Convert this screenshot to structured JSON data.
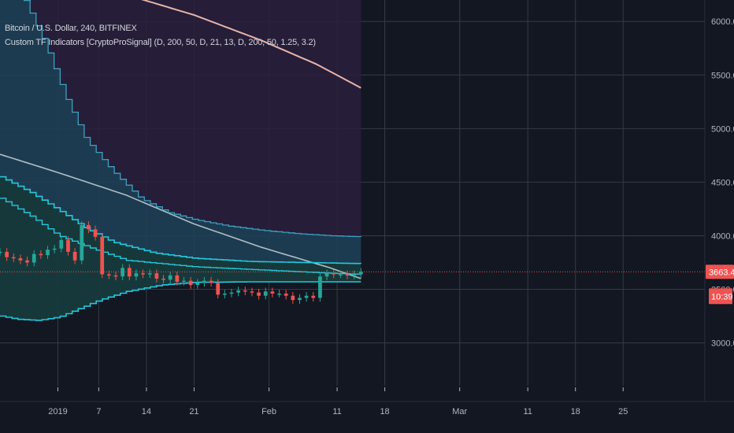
{
  "header": {
    "symbol_line": "Bitcoin / U.S. Dollar, 240, BITFINEX",
    "indicator_line": "Custom TF Indicators [CryptoProSignal] (D, 200, 50, D, 21, 13, D, 200, 50, 1.25, 3.2)"
  },
  "chart_data": {
    "type": "line",
    "title": "Bitcoin / U.S. Dollar, 240, BITFINEX",
    "ylim": [
      2600,
      6200
    ],
    "y_ticks": [
      "3000.0",
      "3500.0",
      "4000.0",
      "4500.0",
      "5000.0",
      "5500.0",
      "6000.0"
    ],
    "x_ticks": [
      "2019",
      "7",
      "14",
      "21",
      "Feb",
      "11",
      "18",
      "Mar",
      "11",
      "18",
      "25"
    ],
    "x_tick_days": [
      0,
      6,
      13,
      20,
      31,
      41,
      48,
      59,
      69,
      76,
      83
    ],
    "x_day_range": [
      -8.5,
      95
    ],
    "last_price_label": "3663.4",
    "countdown_label": "10:39",
    "colors": {
      "background": "#131722",
      "grid": "#363a45",
      "price_up": "#26a69a",
      "price_down": "#ef5350",
      "band": "#26c6da",
      "upper_envelope": "#3fa0c0",
      "ma_200": "#e8b4a8",
      "ma_50": "#b0bec5",
      "last_price": "#ef5350"
    },
    "series": [
      {
        "role": "price",
        "x": [
          -8.5,
          -7.5,
          -6.5,
          -5.5,
          -4.5,
          -3.5,
          -2.5,
          -1.5,
          -0.5,
          0.5,
          1.5,
          2.5,
          3.5,
          4.5,
          5.5,
          6.5,
          7.5,
          8.5,
          9.5,
          10.5,
          11.5,
          12.5,
          13.5,
          14.5,
          15.5,
          16.5,
          17.5,
          18.5,
          19.5,
          20.5,
          21.5,
          22.5,
          23.5,
          24.5,
          25.5,
          26.5,
          27.5,
          28.5,
          29.5,
          30.5,
          31.5,
          32.5,
          33.5,
          34.5,
          35.5,
          36.5,
          37.5,
          38.5,
          39.5,
          40.5,
          41.5,
          42.5,
          43.5,
          44.5
        ],
        "values": [
          3850,
          3800,
          3790,
          3770,
          3750,
          3830,
          3820,
          3870,
          3880,
          3960,
          3850,
          3770,
          4100,
          4060,
          3990,
          3640,
          3630,
          3620,
          3700,
          3620,
          3650,
          3640,
          3650,
          3600,
          3590,
          3630,
          3570,
          3580,
          3540,
          3560,
          3580,
          3560,
          3450,
          3460,
          3470,
          3490,
          3480,
          3470,
          3440,
          3480,
          3460,
          3460,
          3440,
          3400,
          3420,
          3440,
          3420,
          3620,
          3650,
          3640,
          3640,
          3630,
          3640,
          3663.4
        ]
      },
      {
        "role": "ma_200",
        "x": [
          -8.5,
          0,
          10,
          20,
          30,
          38,
          44.5
        ],
        "values": [
          6700,
          6440,
          6250,
          6060,
          5820,
          5600,
          5380
        ]
      },
      {
        "role": "ma_50",
        "x": [
          -8.5,
          0,
          10,
          20,
          30,
          40,
          44.5
        ],
        "values": [
          4760,
          4590,
          4380,
          4110,
          3890,
          3700,
          3600
        ]
      },
      {
        "role": "upper_envelope",
        "x": [
          -8.5,
          -5,
          -2,
          1,
          4,
          8,
          12,
          16,
          20,
          25,
          30,
          35,
          40,
          44.5
        ],
        "values": [
          6500,
          6200,
          5800,
          5300,
          4900,
          4600,
          4350,
          4220,
          4150,
          4090,
          4050,
          4020,
          4000,
          3990
        ]
      },
      {
        "role": "upper_band",
        "x": [
          -8.5,
          -4,
          0,
          4,
          8,
          14,
          20,
          28,
          36,
          44.5
        ],
        "values": [
          4550,
          4400,
          4240,
          4070,
          3940,
          3840,
          3790,
          3760,
          3750,
          3740
        ]
      },
      {
        "role": "mid_band",
        "x": [
          -8.5,
          -4,
          0,
          5,
          10,
          20,
          30,
          40,
          44.5
        ],
        "values": [
          4350,
          4180,
          4000,
          3880,
          3770,
          3710,
          3680,
          3650,
          3640
        ]
      },
      {
        "role": "lower_band",
        "x": [
          -8.5,
          -6,
          -3,
          0,
          3,
          6,
          10,
          15,
          20,
          28,
          36,
          44.5
        ],
        "values": [
          3250,
          3220,
          3210,
          3240,
          3320,
          3400,
          3480,
          3540,
          3565,
          3570,
          3570,
          3570
        ]
      }
    ]
  }
}
